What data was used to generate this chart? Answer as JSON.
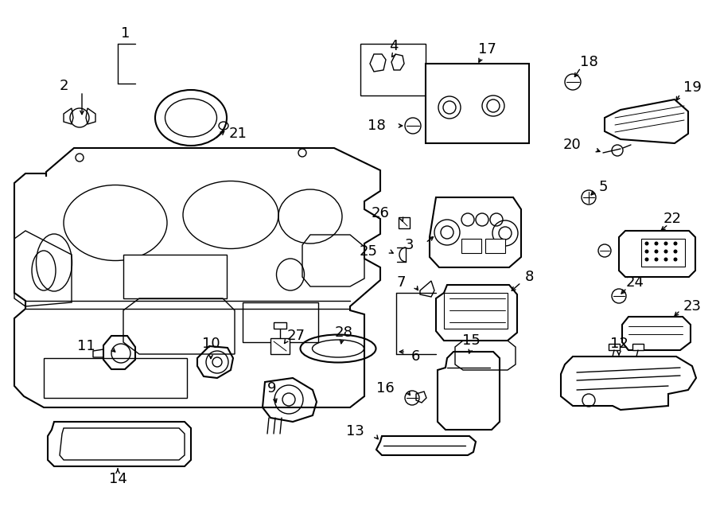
{
  "title": "",
  "bg_color": "#ffffff",
  "line_color": "#000000",
  "text_color": "#000000",
  "fig_width": 9.0,
  "fig_height": 6.61,
  "dpi": 100
}
